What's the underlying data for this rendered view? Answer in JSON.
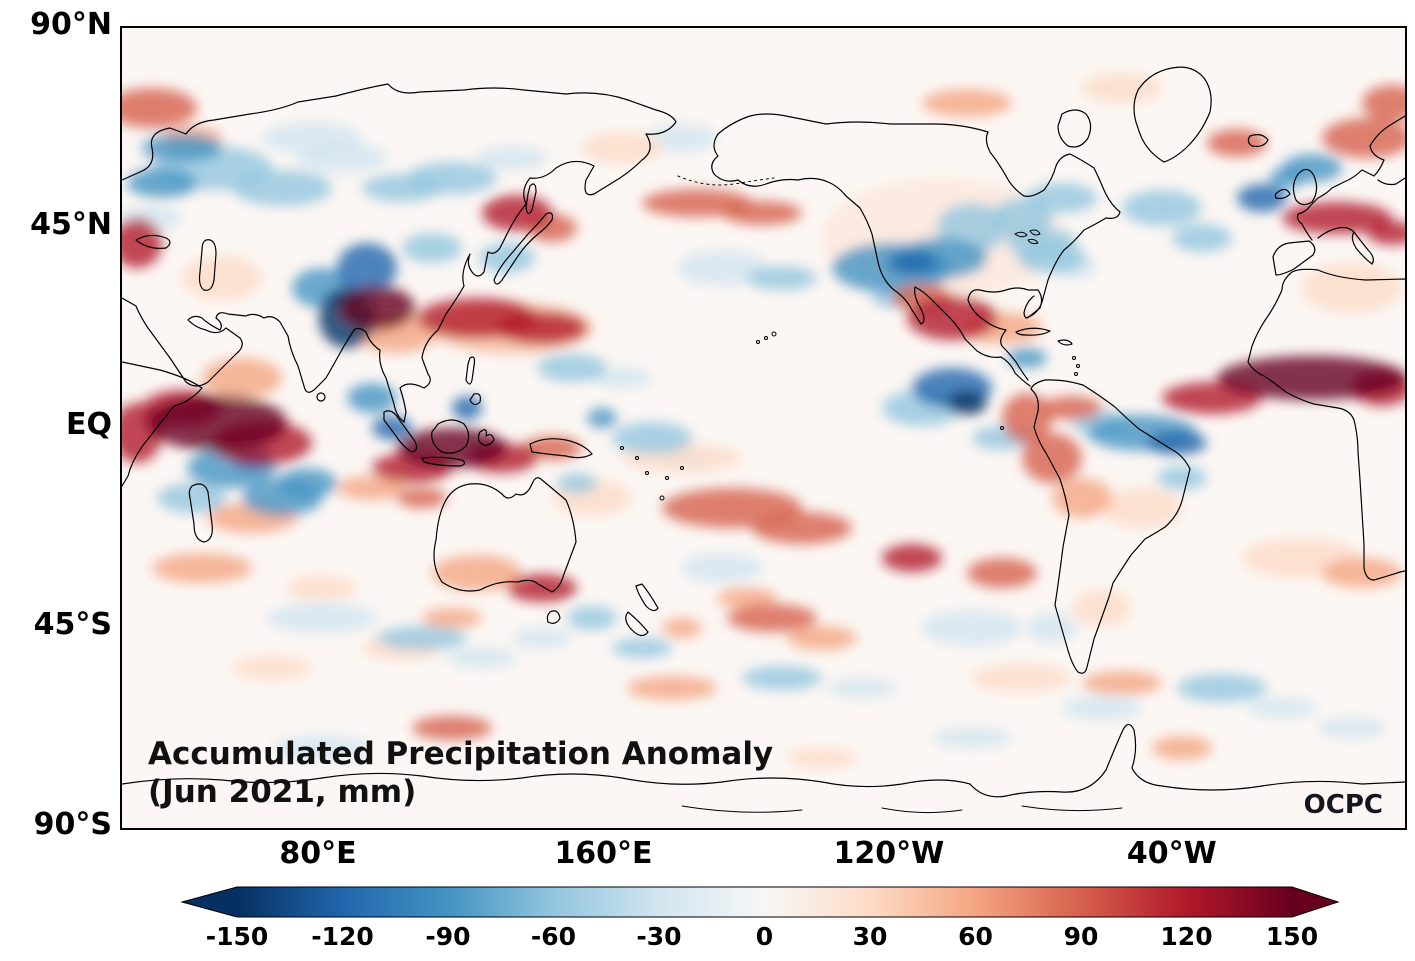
{
  "figure": {
    "title_line1": "Accumulated Precipitation Anomaly",
    "title_line2": "(Jun 2021, mm)",
    "logo_text": "OCPC"
  },
  "chart_data": {
    "type": "heatmap",
    "title": "Accumulated Precipitation Anomaly (Jun 2021, mm)",
    "subtitle": "Jun 2021",
    "units": "mm",
    "map_style": "global Pacific-centered world map with diverging red-blue anomaly shading and black coastlines",
    "value_range": [
      -150,
      150
    ],
    "lat_ticks": [
      {
        "label": "90°N",
        "f": 0
      },
      {
        "label": "45°N",
        "f": 0.25
      },
      {
        "label": "EQ",
        "f": 0.5
      },
      {
        "label": "45°S",
        "f": 0.75
      },
      {
        "label": "90°S",
        "f": 1
      }
    ],
    "lon_ticks": [
      {
        "label": "80°E",
        "f": 0.1528
      },
      {
        "label": "160°E",
        "f": 0.3753
      },
      {
        "label": "120°W",
        "f": 0.5977
      },
      {
        "label": "40°W",
        "f": 0.8182
      }
    ],
    "colorbar": {
      "orientation": "horizontal",
      "extend": "both",
      "ticks": [
        "-150",
        "-120",
        "-90",
        "-60",
        "-30",
        "0",
        "30",
        "60",
        "90",
        "120",
        "150"
      ],
      "stops": [
        "#053061",
        "#2166ac",
        "#4393c3",
        "#92c5de",
        "#d1e5f0",
        "#f7f7f7",
        "#fddbc7",
        "#f4a582",
        "#d6604d",
        "#b2182b",
        "#67001f"
      ]
    },
    "palette": {
      "R1": "#fddbc7",
      "R2": "#f4a582",
      "R3": "#d6604d",
      "R4": "#b2182b",
      "R5": "#67001f",
      "B1": "#d1e5f0",
      "B2": "#92c5de",
      "B3": "#4393c3",
      "B4": "#2166ac",
      "B5": "#053061"
    },
    "blob_format": "[colorKey, cx, cy, rx, ry, opacity(optional)] in 1283x800 map coords; reds=wet-positive, blues=dry-negative anomaly cells",
    "blobs": [
      [
        "R1",
        820,
        210,
        120,
        60,
        0.45
      ],
      [
        "B1",
        220,
        130,
        45,
        15
      ],
      [
        "B1",
        190,
        110,
        50,
        16
      ],
      [
        "B1",
        390,
        130,
        35,
        12
      ],
      [
        "B1",
        500,
        350,
        30,
        10
      ],
      [
        "B1",
        565,
        430,
        25,
        10
      ],
      [
        "B1",
        600,
        240,
        45,
        18
      ],
      [
        "B1",
        950,
        240,
        25,
        10
      ],
      [
        "B1",
        200,
        590,
        55,
        15
      ],
      [
        "B1",
        360,
        630,
        35,
        10
      ],
      [
        "B1",
        420,
        610,
        30,
        10
      ],
      [
        "B1",
        600,
        540,
        40,
        15
      ],
      [
        "B1",
        740,
        660,
        35,
        10
      ],
      [
        "B1",
        850,
        600,
        50,
        18
      ],
      [
        "B1",
        1160,
        680,
        35,
        10
      ],
      [
        "B1",
        980,
        680,
        40,
        12
      ],
      [
        "B1",
        560,
        110,
        35,
        14
      ],
      [
        "B1",
        30,
        190,
        30,
        12
      ],
      [
        "B1",
        200,
        720,
        50,
        12
      ],
      [
        "B1",
        850,
        710,
        40,
        10
      ],
      [
        "B1",
        1230,
        700,
        35,
        10
      ],
      [
        "B1",
        930,
        600,
        25,
        15
      ],
      [
        "R1",
        560,
        430,
        60,
        14
      ],
      [
        "R1",
        470,
        470,
        40,
        18
      ],
      [
        "R1",
        1230,
        260,
        50,
        25
      ],
      [
        "R1",
        1180,
        530,
        60,
        20
      ],
      [
        "R1",
        150,
        640,
        40,
        12
      ],
      [
        "R1",
        900,
        650,
        50,
        14
      ],
      [
        "R1",
        700,
        730,
        35,
        10
      ],
      [
        "R1",
        1020,
        480,
        40,
        20
      ],
      [
        "R1",
        980,
        580,
        30,
        18
      ],
      [
        "R1",
        200,
        560,
        35,
        12
      ],
      [
        "R1",
        100,
        250,
        40,
        22
      ],
      [
        "R1",
        280,
        620,
        40,
        12
      ],
      [
        "R1",
        500,
        120,
        40,
        16
      ],
      [
        "R1",
        1000,
        60,
        40,
        15
      ],
      [
        "B2",
        90,
        140,
        60,
        22
      ],
      [
        "B2",
        160,
        160,
        50,
        18
      ],
      [
        "B2",
        280,
        160,
        40,
        14
      ],
      [
        "B2",
        330,
        150,
        45,
        16
      ],
      [
        "B2",
        310,
        220,
        30,
        15
      ],
      [
        "B2",
        385,
        230,
        28,
        15
      ],
      [
        "B2",
        70,
        470,
        35,
        15
      ],
      [
        "B2",
        450,
        340,
        35,
        14
      ],
      [
        "B2",
        530,
        410,
        40,
        16
      ],
      [
        "B2",
        660,
        250,
        35,
        12
      ],
      [
        "B2",
        850,
        200,
        35,
        25
      ],
      [
        "B2",
        900,
        190,
        30,
        20
      ],
      [
        "B2",
        770,
        270,
        20,
        10
      ],
      [
        "B2",
        800,
        380,
        40,
        18
      ],
      [
        "B2",
        880,
        410,
        30,
        12
      ],
      [
        "B2",
        920,
        215,
        35,
        15
      ],
      [
        "B2",
        940,
        170,
        35,
        15
      ],
      [
        "B2",
        1040,
        180,
        40,
        18
      ],
      [
        "B2",
        1080,
        210,
        30,
        14
      ],
      [
        "B2",
        980,
        395,
        30,
        12
      ],
      [
        "B2",
        1060,
        450,
        25,
        12
      ],
      [
        "B2",
        300,
        610,
        45,
        12
      ],
      [
        "B2",
        470,
        590,
        25,
        12
      ],
      [
        "B2",
        520,
        620,
        30,
        10
      ],
      [
        "B2",
        660,
        650,
        40,
        12
      ],
      [
        "B2",
        1100,
        660,
        45,
        14
      ],
      [
        "B2",
        455,
        455,
        20,
        10
      ],
      [
        "B2",
        930,
        230,
        35,
        15
      ],
      [
        "R2",
        120,
        350,
        40,
        20
      ],
      [
        "R2",
        250,
        460,
        35,
        12
      ],
      [
        "R2",
        130,
        490,
        45,
        15
      ],
      [
        "R2",
        80,
        540,
        50,
        15
      ],
      [
        "R2",
        355,
        545,
        45,
        18
      ],
      [
        "R2",
        330,
        590,
        30,
        10
      ],
      [
        "R2",
        700,
        610,
        35,
        12
      ],
      [
        "R2",
        1240,
        545,
        40,
        15
      ],
      [
        "R2",
        550,
        660,
        45,
        12
      ],
      [
        "R2",
        1000,
        655,
        40,
        12
      ],
      [
        "R2",
        880,
        300,
        40,
        16
      ],
      [
        "R2",
        960,
        470,
        30,
        20
      ],
      [
        "R2",
        845,
        75,
        45,
        14
      ],
      [
        "R2",
        560,
        600,
        20,
        10
      ],
      [
        "R2",
        625,
        570,
        30,
        10
      ],
      [
        "R2",
        1060,
        720,
        30,
        12
      ],
      [
        "R2",
        70,
        110,
        30,
        12
      ],
      [
        "R2",
        275,
        305,
        40,
        20
      ],
      [
        "R2",
        390,
        300,
        80,
        26,
        0.6
      ],
      [
        "B3",
        40,
        155,
        35,
        15
      ],
      [
        "B3",
        60,
        120,
        40,
        14
      ],
      [
        "B3",
        200,
        260,
        30,
        20
      ],
      [
        "B3",
        110,
        440,
        45,
        20
      ],
      [
        "B3",
        160,
        470,
        40,
        18
      ],
      [
        "B3",
        185,
        455,
        30,
        15
      ],
      [
        "B3",
        250,
        370,
        25,
        15
      ],
      [
        "B3",
        770,
        240,
        60,
        25
      ],
      [
        "B3",
        820,
        230,
        45,
        20
      ],
      [
        "B3",
        905,
        330,
        20,
        10
      ],
      [
        "B3",
        1165,
        150,
        18,
        10
      ],
      [
        "B3",
        1020,
        405,
        55,
        18
      ],
      [
        "B3",
        1190,
        140,
        30,
        14
      ],
      [
        "B3",
        480,
        390,
        15,
        10
      ],
      [
        "R3",
        575,
        175,
        55,
        14
      ],
      [
        "R3",
        640,
        185,
        40,
        12
      ],
      [
        "R3",
        430,
        200,
        25,
        14
      ],
      [
        "R3",
        430,
        420,
        30,
        12
      ],
      [
        "R3",
        610,
        480,
        70,
        20
      ],
      [
        "R3",
        680,
        500,
        50,
        16
      ],
      [
        "R3",
        800,
        270,
        30,
        14
      ],
      [
        "R3",
        905,
        390,
        25,
        25
      ],
      [
        "R3",
        930,
        430,
        30,
        25
      ],
      [
        "R3",
        950,
        380,
        30,
        12
      ],
      [
        "R3",
        1245,
        110,
        45,
        20
      ],
      [
        "R3",
        1270,
        75,
        30,
        18
      ],
      [
        "R3",
        30,
        80,
        45,
        20
      ],
      [
        "R3",
        330,
        700,
        40,
        12
      ],
      [
        "R3",
        880,
        545,
        35,
        15
      ],
      [
        "R3",
        1115,
        115,
        30,
        14
      ],
      [
        "R3",
        300,
        470,
        25,
        10
      ],
      [
        "R3",
        650,
        590,
        45,
        14
      ],
      [
        "B4",
        245,
        240,
        30,
        25
      ],
      [
        "B4",
        130,
        430,
        20,
        12
      ],
      [
        "B4",
        270,
        400,
        20,
        12
      ],
      [
        "B4",
        345,
        380,
        15,
        12
      ],
      [
        "B4",
        790,
        235,
        25,
        12
      ],
      [
        "B4",
        830,
        360,
        40,
        20
      ],
      [
        "B4",
        1140,
        170,
        25,
        14
      ],
      [
        "B4",
        1055,
        415,
        30,
        12
      ],
      [
        "R4",
        140,
        415,
        50,
        22
      ],
      [
        "R4",
        60,
        380,
        40,
        18
      ],
      [
        "R4",
        15,
        405,
        25,
        30
      ],
      [
        "R4",
        355,
        290,
        60,
        20
      ],
      [
        "R4",
        420,
        300,
        45,
        16
      ],
      [
        "R4",
        395,
        185,
        35,
        18
      ],
      [
        "R4",
        290,
        440,
        40,
        15
      ],
      [
        "R4",
        380,
        430,
        35,
        15
      ],
      [
        "R4",
        830,
        290,
        45,
        22
      ],
      [
        "R4",
        1090,
        370,
        50,
        16
      ],
      [
        "R4",
        1260,
        360,
        30,
        18
      ],
      [
        "R4",
        1215,
        190,
        55,
        16
      ],
      [
        "R4",
        1270,
        205,
        25,
        12
      ],
      [
        "R4",
        15,
        215,
        25,
        25
      ],
      [
        "R4",
        420,
        560,
        35,
        14
      ],
      [
        "R4",
        790,
        530,
        30,
        14
      ],
      [
        "B5",
        225,
        290,
        28,
        30
      ],
      [
        "B5",
        845,
        375,
        20,
        12
      ],
      [
        "R5",
        95,
        395,
        70,
        28
      ],
      [
        "R5",
        255,
        280,
        38,
        22
      ],
      [
        "R5",
        330,
        420,
        55,
        20
      ],
      [
        "R5",
        1190,
        350,
        95,
        22
      ]
    ]
  }
}
